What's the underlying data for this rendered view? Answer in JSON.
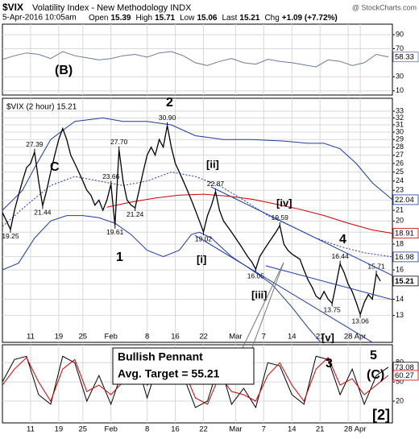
{
  "header": {
    "symbol": "$VIX",
    "title": "Volatility Index - New Methodology INDX",
    "source": "@ StockCharts.com",
    "date": "5-Apr-2016 10:05am",
    "items": [
      {
        "label": "Open",
        "value": 15.39
      },
      {
        "label": "High",
        "value": 15.71
      },
      {
        "label": "Low",
        "value": 15.06
      },
      {
        "label": "Last",
        "value": 15.21
      },
      {
        "label": "Chg",
        "value": "+1.09 (+7.72%)"
      }
    ]
  },
  "chart_data": [
    {
      "type": "line",
      "xlim": [
        0,
        97
      ],
      "ylim": [
        4,
        105
      ],
      "yticks": [
        10,
        30,
        70,
        90
      ],
      "grid": true,
      "series": [
        {
          "color": "#6b7a99",
          "badge": true,
          "x": [
            0,
            3,
            6,
            9,
            12,
            15,
            18,
            21,
            24,
            27,
            30,
            33,
            36,
            39,
            42,
            45,
            48,
            51,
            54,
            57,
            60,
            63,
            66,
            69,
            72,
            75,
            78,
            81,
            84,
            87,
            90,
            93,
            96
          ],
          "values": [
            55,
            60,
            64,
            62,
            56,
            66,
            60,
            57,
            54,
            56,
            60,
            62,
            58,
            64,
            66,
            60,
            50,
            46,
            52,
            56,
            50,
            48,
            55,
            52,
            50,
            47,
            44,
            54,
            52,
            46,
            50,
            62,
            58.33
          ]
        }
      ],
      "waves": [
        {
          "text": "(B)",
          "color": "#000000"
        }
      ]
    },
    {
      "type": "line",
      "legend": "$VIX (2 hour) 15.21",
      "log_scale": true,
      "xlim": [
        0,
        97
      ],
      "ylim": [
        11.5,
        35
      ],
      "yticks": [
        13,
        14,
        15,
        16,
        17,
        18,
        19,
        20,
        21,
        22,
        23,
        24,
        25,
        26,
        27,
        28,
        29,
        30,
        31,
        32,
        33
      ],
      "xticks": [
        {
          "value": 7,
          "label": "11"
        },
        {
          "value": 14,
          "label": "19"
        },
        {
          "value": 20,
          "label": "25"
        },
        {
          "value": 27,
          "label": "Feb"
        },
        {
          "value": 36,
          "label": "8"
        },
        {
          "value": 43,
          "label": "16"
        },
        {
          "value": 50,
          "label": "22"
        },
        {
          "value": 58,
          "label": "Mar"
        },
        {
          "value": 65,
          "label": "7"
        },
        {
          "value": 72,
          "label": "14"
        },
        {
          "value": 79,
          "label": "21"
        },
        {
          "value": 86,
          "label": "28"
        },
        {
          "value": 89,
          "label": "Apr"
        }
      ],
      "grid": true,
      "series": [
        {
          "color": "#1f3a9e",
          "badge": true,
          "x": [
            0,
            5,
            8,
            12,
            18,
            25,
            30,
            36,
            42,
            48,
            55,
            62,
            70,
            76,
            80,
            84,
            88,
            92,
            97
          ],
          "values": [
            21,
            23,
            25.5,
            29,
            31.5,
            32,
            31.5,
            31.5,
            31,
            29.5,
            29,
            29,
            28.8,
            28.5,
            28.5,
            27.8,
            26,
            23.8,
            22.04
          ]
        },
        {
          "color": "#1f3a9e",
          "x": [
            0,
            4,
            8,
            12,
            16,
            20,
            24,
            28,
            32,
            36,
            40,
            44,
            47,
            49,
            52,
            57,
            62,
            67,
            72,
            76,
            80
          ],
          "values": [
            16,
            16.5,
            18.5,
            20,
            20.5,
            20.5,
            20.3,
            19.8,
            18.8,
            17.5,
            17,
            17.5,
            18.8,
            19,
            18.5,
            17,
            16,
            15,
            13.5,
            12.3,
            11.3
          ]
        },
        {
          "color": "#cc0000",
          "badge": true,
          "x": [
            26,
            32,
            38,
            44,
            50,
            56,
            62,
            68,
            74,
            80,
            86,
            92,
            97
          ],
          "values": [
            21.3,
            21.8,
            22.2,
            22.5,
            22.6,
            22.4,
            22.1,
            21.6,
            21.1,
            20.5,
            19.8,
            19.2,
            18.91
          ]
        },
        {
          "color": "#1f3a9e",
          "dash": true,
          "badge": true,
          "x": [
            0,
            6,
            12,
            18,
            24,
            30,
            36,
            42,
            48,
            54,
            60,
            66,
            72,
            78,
            84,
            90,
            97
          ],
          "values": [
            19.5,
            21.5,
            23.5,
            24.5,
            24,
            23.5,
            24,
            25,
            24.5,
            23.5,
            22,
            20.5,
            19.5,
            18.5,
            17.8,
            17.3,
            16.98
          ]
        },
        {
          "color": "#000000",
          "badge": true,
          "bold": true,
          "x": [
            0,
            1,
            2,
            3,
            4,
            5,
            6,
            7,
            8,
            9,
            10,
            11,
            12,
            13,
            14,
            15,
            16,
            17,
            18,
            19,
            20,
            21,
            22,
            23,
            24,
            25,
            26,
            27,
            28,
            29,
            30,
            31,
            32,
            33,
            34,
            35,
            36,
            37,
            38,
            39,
            40,
            41,
            42,
            43,
            44,
            45,
            46,
            47,
            48,
            49,
            50,
            51,
            52,
            53,
            54,
            55,
            56,
            57,
            58,
            59,
            60,
            61,
            62,
            63,
            64,
            65,
            66,
            67,
            68,
            69,
            70,
            71,
            72,
            73,
            74,
            75,
            76,
            77,
            78,
            79,
            80,
            81,
            82,
            83,
            84,
            85,
            86,
            87,
            88,
            89,
            90,
            91,
            92,
            93,
            94
          ],
          "values": [
            20.8,
            20,
            19.25,
            21,
            22.5,
            24,
            25.5,
            26,
            27.39,
            24,
            21.44,
            23,
            25,
            27,
            29,
            30.5,
            29,
            27,
            26,
            25,
            24,
            23,
            22.5,
            21.5,
            22,
            21,
            22,
            23.66,
            19.61,
            27.7,
            24,
            22,
            21.5,
            21.24,
            23,
            25,
            27,
            28,
            27,
            29,
            28,
            30.9,
            28,
            26,
            25,
            24,
            23,
            22,
            21,
            20,
            19.02,
            20.5,
            21.5,
            22.87,
            21,
            20,
            19.5,
            19,
            18.5,
            18,
            17.5,
            17,
            16.6,
            16.05,
            17,
            17.5,
            18,
            18.5,
            19,
            19.59,
            18,
            17.5,
            17.2,
            17,
            16.8,
            16,
            15.3,
            14.8,
            14.2,
            14,
            14.5,
            14,
            13.75,
            15,
            16.44,
            15.8,
            15,
            14.5,
            13.8,
            13.06,
            13.8,
            14.3,
            14,
            15.71,
            15.21
          ]
        }
      ],
      "peaks": {
        "x": [
          2,
          8,
          10,
          27,
          28,
          29,
          33,
          41,
          50,
          53,
          63,
          69,
          82,
          84,
          89,
          93
        ],
        "values": [
          19.25,
          27.39,
          21.44,
          23.66,
          19.61,
          27.7,
          21.24,
          30.9,
          19.02,
          22.87,
          16.05,
          19.59,
          13.75,
          16.44,
          13.06,
          15.71
        ],
        "value_labels": [
          "19.25",
          "27.39",
          "21.44",
          "23.66",
          "19.61",
          "27.70",
          "21.24",
          "30.90",
          "19.02",
          "22.87",
          "16.05",
          "19.59",
          "13.75",
          "16.44",
          "13.06",
          "15.71"
        ]
      },
      "waves": [
        {
          "text": "C",
          "color": "#8a1fc9"
        },
        {
          "text": "2",
          "color": "#8a1fc9"
        },
        {
          "text": "[ii]",
          "color": "#cc0000"
        },
        {
          "text": "[i]",
          "color": "#cc0000"
        },
        {
          "text": "[iii]",
          "color": "#cc0000"
        },
        {
          "text": "[iv]",
          "color": "#cc0000"
        },
        {
          "text": "4",
          "color": "#8a1fc9"
        },
        {
          "text": "[v]",
          "color": "#cc0000"
        },
        {
          "text": "1",
          "color": "#8a1fc9"
        }
      ],
      "callout": [
        "Bullish Pennant",
        "Avg. Target = 55.21"
      ]
    },
    {
      "type": "line",
      "xlim": [
        0,
        97
      ],
      "ylim": [
        -14,
        108
      ],
      "yticks": [
        20,
        50,
        80
      ],
      "grid": true,
      "series": [
        {
          "color": "#000000",
          "badge": true,
          "x": [
            0,
            3,
            6,
            9,
            12,
            15,
            18,
            21,
            24,
            27,
            30,
            33,
            36,
            39,
            42,
            45,
            48,
            51,
            54,
            57,
            60,
            63,
            66,
            69,
            72,
            75,
            78,
            81,
            84,
            87,
            90,
            93,
            96
          ],
          "values": [
            50,
            85,
            90,
            30,
            15,
            90,
            80,
            20,
            60,
            15,
            70,
            90,
            25,
            85,
            90,
            60,
            10,
            20,
            80,
            15,
            40,
            10,
            80,
            75,
            30,
            15,
            90,
            85,
            30,
            70,
            15,
            60,
            73.08
          ]
        },
        {
          "color": "#cc0000",
          "badge": true,
          "x": [
            0,
            3,
            6,
            9,
            12,
            15,
            18,
            21,
            24,
            27,
            30,
            33,
            36,
            39,
            42,
            45,
            48,
            51,
            54,
            57,
            60,
            63,
            66,
            69,
            72,
            75,
            78,
            81,
            84,
            87,
            90,
            93,
            96
          ],
          "values": [
            45,
            70,
            88,
            50,
            20,
            70,
            85,
            35,
            45,
            30,
            50,
            85,
            45,
            60,
            88,
            70,
            25,
            15,
            60,
            35,
            30,
            20,
            60,
            80,
            45,
            20,
            70,
            88,
            45,
            55,
            30,
            45,
            60.27
          ]
        }
      ],
      "waves": [
        {
          "text": "3",
          "color": "#8a1fc9"
        },
        {
          "text": "5",
          "color": "#8a1fc9"
        },
        {
          "text": "(C)",
          "color": "#000000"
        },
        {
          "text": "[2]",
          "color": "#1f3a9e"
        }
      ]
    }
  ]
}
